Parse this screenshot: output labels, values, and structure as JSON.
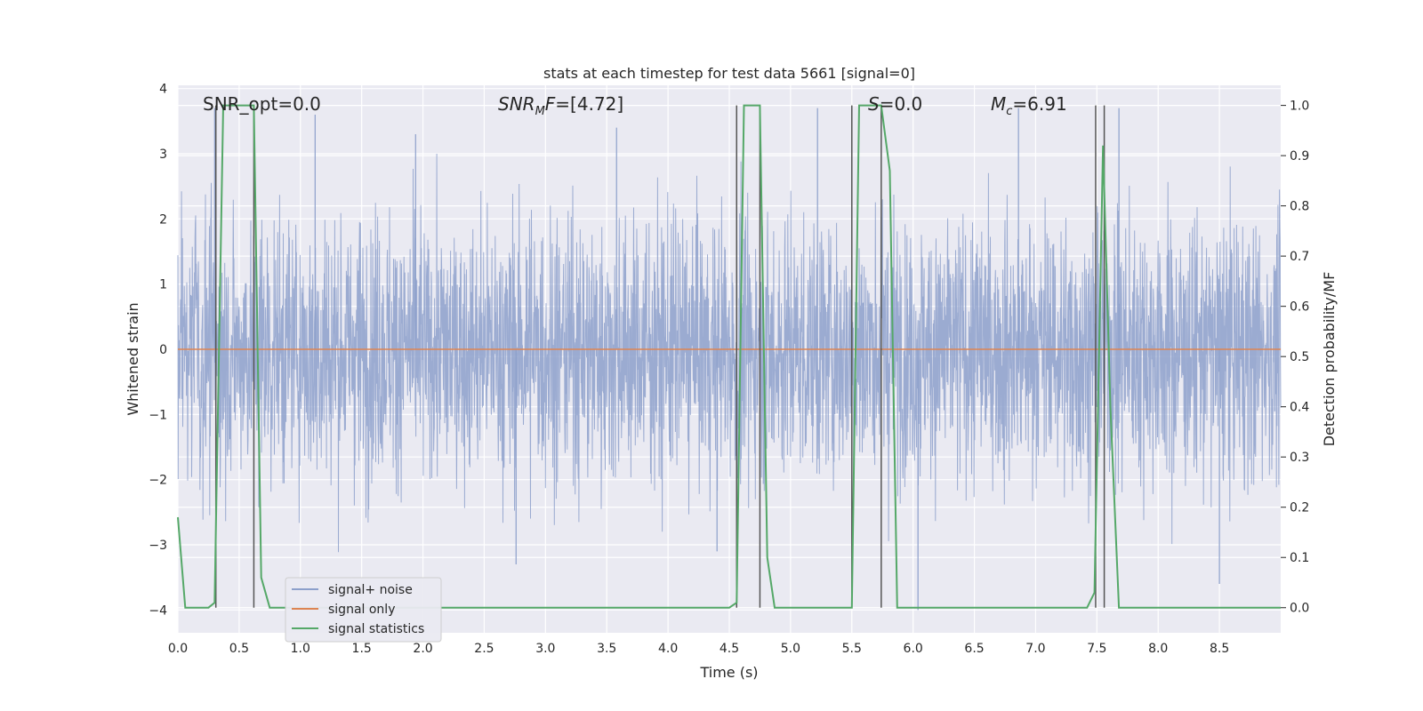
{
  "chart_data": {
    "type": "line",
    "title": "stats at each timestep for test data 5661 [signal=0]",
    "xlabel": "Time (s)",
    "ylabel": "Whitened strain",
    "ylabel_right": "Detection probability/MF",
    "xlim": [
      0.0,
      9.0
    ],
    "ylim": [
      -4.35,
      4.05
    ],
    "ylim_right": [
      -0.05,
      1.04
    ],
    "x_ticks": [
      "0.0",
      "0.5",
      "1.0",
      "1.5",
      "2.0",
      "2.5",
      "3.0",
      "3.5",
      "4.0",
      "4.5",
      "5.0",
      "5.5",
      "6.0",
      "6.5",
      "7.0",
      "7.5",
      "8.0",
      "8.5"
    ],
    "x_tick_values": [
      0.0,
      0.5,
      1.0,
      1.5,
      2.0,
      2.5,
      3.0,
      3.5,
      4.0,
      4.5,
      5.0,
      5.5,
      6.0,
      6.5,
      7.0,
      7.5,
      8.0,
      8.5
    ],
    "y_ticks": [
      "4",
      "3",
      "2",
      "1",
      "0",
      "−1",
      "−2",
      "−3",
      "−4"
    ],
    "y_tick_values": [
      4,
      3,
      2,
      1,
      0,
      -1,
      -2,
      -3,
      -4
    ],
    "y_ticks_right": [
      "1.0",
      "0.9",
      "0.8",
      "0.7",
      "0.6",
      "0.5",
      "0.4",
      "0.3",
      "0.2",
      "0.1",
      "0.0"
    ],
    "y_tick_values_right": [
      1.0,
      0.9,
      0.8,
      0.7,
      0.6,
      0.5,
      0.4,
      0.3,
      0.2,
      0.1,
      0.0
    ],
    "grid": true,
    "legend_position": "lower-left",
    "legend": [
      "signal+ noise",
      "signal only",
      "signal statistics"
    ],
    "annotations": {
      "snr_opt": "SNR_opt=0.0",
      "snr_mf": "=[4.72]",
      "s": "=0.0",
      "mc": "=6.91"
    },
    "series": [
      {
        "name": "signal+ noise",
        "color": "#8da0cb",
        "noise_band_sigma": 1.0,
        "peak_values": [
          3.7,
          3.6,
          3.3,
          -3.3,
          3.4,
          -3.1,
          3.7,
          -4.0,
          3.7,
          3.7,
          -3.6
        ]
      },
      {
        "name": "signal only",
        "color": "#dd8452",
        "value": 0.0
      },
      {
        "name": "signal statistics",
        "color": "#55a868",
        "axis": "right",
        "x": [
          0.0,
          0.06,
          0.12,
          0.25,
          0.3,
          0.37,
          0.4,
          0.44,
          0.5,
          0.56,
          0.62,
          0.68,
          0.75,
          0.81,
          4.5,
          4.56,
          4.62,
          4.69,
          4.75,
          4.81,
          4.87,
          5.5,
          5.56,
          5.62,
          5.68,
          5.74,
          5.81,
          5.87,
          5.93,
          7.42,
          7.48,
          7.55,
          7.61,
          7.68,
          9.0
        ],
        "y": [
          0.18,
          0.0,
          0.0,
          0.0,
          0.01,
          1.0,
          1.0,
          1.0,
          1.0,
          1.0,
          1.0,
          0.06,
          0.0,
          0.0,
          0.0,
          0.01,
          1.0,
          1.0,
          1.0,
          0.1,
          0.0,
          0.0,
          1.0,
          1.0,
          1.0,
          1.0,
          0.87,
          0.0,
          0.0,
          0.0,
          0.03,
          0.92,
          0.4,
          0.0,
          0.0
        ]
      }
    ],
    "vertical_markers": [
      0.31,
      0.62,
      4.56,
      4.75,
      5.5,
      5.74,
      7.49,
      7.56
    ],
    "marker_color": "#555555"
  }
}
